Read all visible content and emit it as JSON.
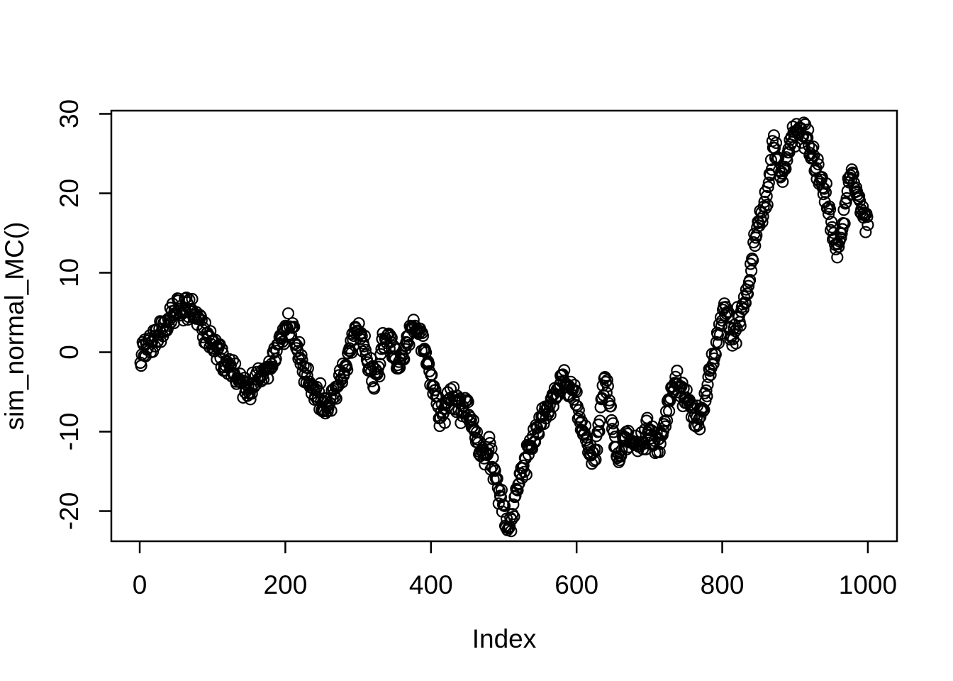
{
  "figure": {
    "background_color": "#ffffff",
    "foreground_color": "#000000"
  },
  "chart_data": {
    "type": "scatter",
    "marker": "open-circle",
    "title": "",
    "xlabel": "Index",
    "ylabel": "sim_normal_MC()",
    "x_ticks": [
      0,
      200,
      400,
      600,
      800,
      1000
    ],
    "y_ticks": [
      -20,
      -10,
      0,
      10,
      20,
      30
    ],
    "xlim": [
      -39,
      1040
    ],
    "ylim": [
      -23.8,
      30.4
    ],
    "grid": false,
    "legend": null,
    "n_points": 1000,
    "point_color": "#000000",
    "series_description": "Random-walk style simulated Markov chain (cumulative sum of standard normals), length 1000, drawn as open circles",
    "jitter_sd": 0.8,
    "seed": 42,
    "waypoints": [
      [
        0,
        -0.5
      ],
      [
        8,
        0.3
      ],
      [
        15,
        1.2
      ],
      [
        22,
        2.0
      ],
      [
        30,
        2.7
      ],
      [
        38,
        3.5
      ],
      [
        45,
        4.5
      ],
      [
        52,
        5.2
      ],
      [
        60,
        5.6
      ],
      [
        68,
        5.4
      ],
      [
        75,
        4.7
      ],
      [
        82,
        3.6
      ],
      [
        90,
        2.6
      ],
      [
        98,
        1.4
      ],
      [
        105,
        0.4
      ],
      [
        112,
        -0.6
      ],
      [
        120,
        -1.6
      ],
      [
        128,
        -2.6
      ],
      [
        136,
        -3.4
      ],
      [
        143,
        -4.2
      ],
      [
        150,
        -4.8
      ],
      [
        157,
        -4.1
      ],
      [
        164,
        -3.3
      ],
      [
        172,
        -2.5
      ],
      [
        180,
        -1.8
      ],
      [
        187,
        -0.3
      ],
      [
        194,
        1.6
      ],
      [
        200,
        2.9
      ],
      [
        206,
        3.6
      ],
      [
        212,
        1.9
      ],
      [
        218,
        -0.2
      ],
      [
        225,
        -2.2
      ],
      [
        232,
        -3.7
      ],
      [
        240,
        -4.9
      ],
      [
        248,
        -6.2
      ],
      [
        255,
        -6.9
      ],
      [
        262,
        -5.9
      ],
      [
        270,
        -4.7
      ],
      [
        278,
        -2.9
      ],
      [
        285,
        -1.1
      ],
      [
        292,
        1.4
      ],
      [
        298,
        3.2
      ],
      [
        304,
        2.3
      ],
      [
        310,
        0.3
      ],
      [
        316,
        -1.8
      ],
      [
        322,
        -3.9
      ],
      [
        328,
        -2.7
      ],
      [
        334,
        1.3
      ],
      [
        340,
        2.3
      ],
      [
        347,
        0.4
      ],
      [
        354,
        -1.9
      ],
      [
        360,
        -0.9
      ],
      [
        367,
        1.1
      ],
      [
        374,
        2.7
      ],
      [
        381,
        3.4
      ],
      [
        388,
        1.7
      ],
      [
        394,
        -0.5
      ],
      [
        400,
        -3.1
      ],
      [
        406,
        -5.5
      ],
      [
        412,
        -7.8
      ],
      [
        418,
        -7.3
      ],
      [
        424,
        -6.3
      ],
      [
        430,
        -5.7
      ],
      [
        436,
        -6.7
      ],
      [
        443,
        -7.7
      ],
      [
        450,
        -7.1
      ],
      [
        456,
        -8.5
      ],
      [
        462,
        -10.6
      ],
      [
        468,
        -12.4
      ],
      [
        474,
        -13.3
      ],
      [
        480,
        -12.5
      ],
      [
        486,
        -14.6
      ],
      [
        492,
        -17.0
      ],
      [
        498,
        -19.3
      ],
      [
        503,
        -21.0
      ],
      [
        507,
        -21.9
      ],
      [
        511,
        -20.3
      ],
      [
        516,
        -17.9
      ],
      [
        521,
        -16.1
      ],
      [
        527,
        -14.5
      ],
      [
        533,
        -13.1
      ],
      [
        539,
        -11.7
      ],
      [
        546,
        -9.9
      ],
      [
        552,
        -8.7
      ],
      [
        558,
        -7.5
      ],
      [
        565,
        -6.3
      ],
      [
        572,
        -4.9
      ],
      [
        578,
        -3.9
      ],
      [
        585,
        -3.3
      ],
      [
        591,
        -3.9
      ],
      [
        597,
        -5.5
      ],
      [
        603,
        -7.7
      ],
      [
        609,
        -9.9
      ],
      [
        615,
        -11.9
      ],
      [
        621,
        -13.5
      ],
      [
        626,
        -12.3
      ],
      [
        631,
        -8.9
      ],
      [
        636,
        -5.5
      ],
      [
        640,
        -3.3
      ],
      [
        644,
        -5.1
      ],
      [
        648,
        -7.9
      ],
      [
        652,
        -11.1
      ],
      [
        656,
        -13.7
      ],
      [
        661,
        -12.7
      ],
      [
        666,
        -11.1
      ],
      [
        672,
        -10.7
      ],
      [
        678,
        -11.7
      ],
      [
        684,
        -12.3
      ],
      [
        690,
        -11.3
      ],
      [
        696,
        -9.9
      ],
      [
        702,
        -10.3
      ],
      [
        708,
        -11.3
      ],
      [
        714,
        -10.7
      ],
      [
        719,
        -9.3
      ],
      [
        725,
        -7.3
      ],
      [
        731,
        -5.3
      ],
      [
        738,
        -3.9
      ],
      [
        744,
        -4.7
      ],
      [
        750,
        -5.9
      ],
      [
        757,
        -7.3
      ],
      [
        763,
        -8.2
      ],
      [
        769,
        -8.7
      ],
      [
        775,
        -6.7
      ],
      [
        781,
        -3.7
      ],
      [
        787,
        -0.9
      ],
      [
        793,
        1.6
      ],
      [
        799,
        3.9
      ],
      [
        804,
        5.6
      ],
      [
        809,
        3.4
      ],
      [
        814,
        1.2
      ],
      [
        818,
        2.5
      ],
      [
        823,
        4.4
      ],
      [
        828,
        5.8
      ],
      [
        833,
        7.2
      ],
      [
        838,
        9.6
      ],
      [
        842,
        12.1
      ],
      [
        846,
        14.2
      ],
      [
        850,
        15.9
      ],
      [
        855,
        17.5
      ],
      [
        859,
        19.1
      ],
      [
        863,
        21.1
      ],
      [
        866,
        23.1
      ],
      [
        869,
        25.1
      ],
      [
        872,
        26.7
      ],
      [
        875,
        25.5
      ],
      [
        878,
        23.3
      ],
      [
        881,
        21.7
      ],
      [
        885,
        22.7
      ],
      [
        889,
        24.5
      ],
      [
        893,
        26.1
      ],
      [
        897,
        27.3
      ],
      [
        901,
        28.0
      ],
      [
        905,
        28.4
      ],
      [
        909,
        27.9
      ],
      [
        913,
        27.1
      ],
      [
        918,
        26.3
      ],
      [
        923,
        25.3
      ],
      [
        928,
        23.9
      ],
      [
        933,
        22.7
      ],
      [
        938,
        20.9
      ],
      [
        943,
        19.3
      ],
      [
        948,
        17.3
      ],
      [
        953,
        14.9
      ],
      [
        958,
        12.9
      ],
      [
        962,
        14.3
      ],
      [
        966,
        16.7
      ],
      [
        970,
        19.1
      ],
      [
        974,
        21.3
      ],
      [
        977,
        22.9
      ],
      [
        980,
        21.9
      ],
      [
        984,
        20.5
      ],
      [
        988,
        19.3
      ],
      [
        992,
        18.1
      ],
      [
        996,
        17.1
      ],
      [
        1000,
        16.6
      ]
    ]
  }
}
